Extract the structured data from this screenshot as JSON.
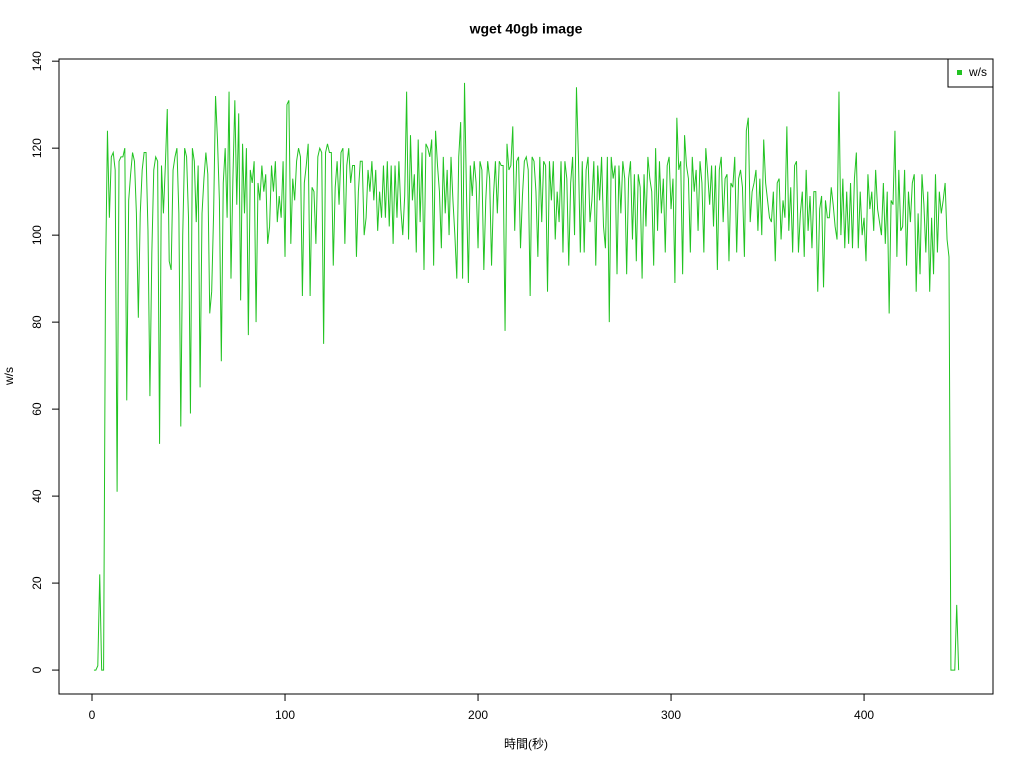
{
  "chart_data": {
    "type": "line",
    "title": "wget 40gb image",
    "x_label": "時間(秒)",
    "y_label": "w/s",
    "xlim": [
      -17.1,
      466.8
    ],
    "ylim": [
      -5.5,
      140.5
    ],
    "xticks": [
      0,
      100,
      200,
      300,
      400
    ],
    "yticks": [
      0,
      20,
      40,
      60,
      80,
      100,
      120,
      140
    ],
    "legend": "top-right",
    "x": [
      1,
      2,
      3,
      4,
      5,
      6,
      7,
      8,
      9,
      10,
      11,
      12,
      13,
      14,
      15,
      16,
      17,
      18,
      19,
      20,
      21,
      22,
      23,
      24,
      25,
      26,
      27,
      28,
      29,
      30,
      31,
      32,
      33,
      34,
      35,
      36,
      37,
      38,
      39,
      40,
      41,
      42,
      43,
      44,
      45,
      46,
      47,
      48,
      49,
      50,
      51,
      52,
      53,
      54,
      55,
      56,
      57,
      58,
      59,
      60,
      61,
      62,
      63,
      64,
      65,
      66,
      67,
      68,
      69,
      70,
      71,
      72,
      73,
      74,
      75,
      76,
      77,
      78,
      79,
      80,
      81,
      82,
      83,
      84,
      85,
      86,
      87,
      88,
      89,
      90,
      91,
      92,
      93,
      94,
      95,
      96,
      97,
      98,
      99,
      100,
      101,
      102,
      103,
      104,
      105,
      106,
      107,
      108,
      109,
      110,
      111,
      112,
      113,
      114,
      115,
      116,
      117,
      118,
      119,
      120,
      121,
      122,
      123,
      124,
      125,
      126,
      127,
      128,
      129,
      130,
      131,
      132,
      133,
      134,
      135,
      136,
      137,
      138,
      139,
      140,
      141,
      142,
      143,
      144,
      145,
      146,
      147,
      148,
      149,
      150,
      151,
      152,
      153,
      154,
      155,
      156,
      157,
      158,
      159,
      160,
      161,
      162,
      163,
      164,
      165,
      166,
      167,
      168,
      169,
      170,
      171,
      172,
      173,
      174,
      175,
      176,
      177,
      178,
      179,
      180,
      181,
      182,
      183,
      184,
      185,
      186,
      187,
      188,
      189,
      190,
      191,
      192,
      193,
      194,
      195,
      196,
      197,
      198,
      199,
      200,
      201,
      202,
      203,
      204,
      205,
      206,
      207,
      208,
      209,
      210,
      211,
      212,
      213,
      214,
      215,
      216,
      217,
      218,
      219,
      220,
      221,
      222,
      223,
      224,
      225,
      226,
      227,
      228,
      229,
      230,
      231,
      232,
      233,
      234,
      235,
      236,
      237,
      238,
      239,
      240,
      241,
      242,
      243,
      244,
      245,
      246,
      247,
      248,
      249,
      250,
      251,
      252,
      253,
      254,
      255,
      256,
      257,
      258,
      259,
      260,
      261,
      262,
      263,
      264,
      265,
      266,
      267,
      268,
      269,
      270,
      271,
      272,
      273,
      274,
      275,
      276,
      277,
      278,
      279,
      280,
      281,
      282,
      283,
      284,
      285,
      286,
      287,
      288,
      289,
      290,
      291,
      292,
      293,
      294,
      295,
      296,
      297,
      298,
      299,
      300,
      301,
      302,
      303,
      304,
      305,
      306,
      307,
      308,
      309,
      310,
      311,
      312,
      313,
      314,
      315,
      316,
      317,
      318,
      319,
      320,
      321,
      322,
      323,
      324,
      325,
      326,
      327,
      328,
      329,
      330,
      331,
      332,
      333,
      334,
      335,
      336,
      337,
      338,
      339,
      340,
      341,
      342,
      343,
      344,
      345,
      346,
      347,
      348,
      349,
      350,
      351,
      352,
      353,
      354,
      355,
      356,
      357,
      358,
      359,
      360,
      361,
      362,
      363,
      364,
      365,
      366,
      367,
      368,
      369,
      370,
      371,
      372,
      373,
      374,
      375,
      376,
      377,
      378,
      379,
      380,
      381,
      382,
      383,
      384,
      385,
      386,
      387,
      388,
      389,
      390,
      391,
      392,
      393,
      394,
      395,
      396,
      397,
      398,
      399,
      400,
      401,
      402,
      403,
      404,
      405,
      406,
      407,
      408,
      409,
      410,
      411,
      412,
      413,
      414,
      415,
      416,
      417,
      418,
      419,
      420,
      421,
      422,
      423,
      424,
      425,
      426,
      427,
      428,
      429,
      430,
      431,
      432,
      433,
      434,
      435,
      436,
      437,
      438,
      439,
      440,
      441,
      442,
      443,
      444,
      445,
      446,
      447,
      448,
      449
    ],
    "series": [
      {
        "name": "w/s",
        "color": "#22c322",
        "values": [
          0,
          0,
          1,
          22,
          0,
          0,
          90,
          124,
          104,
          118,
          119,
          115,
          41,
          117,
          118,
          118,
          120,
          62,
          108,
          114,
          119,
          117,
          105,
          81,
          105,
          115,
          119,
          119,
          101,
          63,
          96,
          115,
          118,
          117,
          52,
          116,
          105,
          116,
          129,
          94,
          92,
          115,
          118,
          120,
          105,
          56,
          100,
          120,
          118,
          104,
          59,
          120,
          117,
          103,
          116,
          65,
          105,
          113,
          119,
          114,
          82,
          87,
          105,
          132,
          122,
          108,
          71,
          112,
          120,
          104,
          133,
          90,
          113,
          131,
          107,
          128,
          85,
          121,
          105,
          120,
          77,
          115,
          112,
          117,
          80,
          112,
          108,
          116,
          110,
          114,
          98,
          102,
          116,
          110,
          117,
          103,
          109,
          104,
          117,
          95,
          130,
          131,
          98,
          113,
          108,
          117,
          120,
          118,
          86,
          112,
          116,
          121,
          86,
          111,
          110,
          98,
          118,
          120,
          119,
          75,
          119,
          121,
          119,
          119,
          93,
          111,
          117,
          107,
          119,
          120,
          98,
          116,
          120,
          112,
          116,
          116,
          95,
          110,
          117,
          117,
          100,
          104,
          115,
          110,
          117,
          108,
          115,
          101,
          110,
          104,
          116,
          104,
          117,
          102,
          116,
          98,
          116,
          104,
          117,
          106,
          100,
          109,
          133,
          99,
          123,
          108,
          114,
          96,
          122,
          103,
          119,
          92,
          121,
          120,
          118,
          122,
          93,
          124,
          116,
          110,
          97,
          118,
          105,
          115,
          100,
          118,
          108,
          100,
          90,
          118,
          126,
          90,
          135,
          110,
          89,
          116,
          109,
          117,
          112,
          97,
          117,
          115,
          92,
          108,
          117,
          113,
          93,
          109,
          117,
          105,
          117,
          116,
          116,
          78,
          121,
          115,
          116,
          125,
          101,
          117,
          118,
          97,
          109,
          117,
          118,
          115,
          86,
          118,
          117,
          110,
          95,
          118,
          103,
          117,
          116,
          87,
          117,
          108,
          117,
          99,
          110,
          103,
          117,
          96,
          117,
          113,
          93,
          112,
          118,
          100,
          134,
          118,
          96,
          117,
          96,
          115,
          118,
          103,
          108,
          117,
          93,
          116,
          108,
          118,
          102,
          97,
          118,
          80,
          118,
          113,
          116,
          91,
          116,
          105,
          117,
          113,
          91,
          113,
          117,
          99,
          114,
          94,
          114,
          111,
          90,
          114,
          102,
          118,
          113,
          110,
          93,
          120,
          101,
          117,
          105,
          113,
          96,
          116,
          118,
          106,
          113,
          89,
          127,
          115,
          117,
          91,
          123,
          116,
          113,
          96,
          118,
          110,
          115,
          101,
          117,
          112,
          96,
          120,
          114,
          107,
          116,
          102,
          116,
          92,
          115,
          118,
          103,
          113,
          114,
          94,
          112,
          111,
          118,
          96,
          113,
          115,
          111,
          95,
          124,
          127,
          103,
          110,
          112,
          115,
          101,
          113,
          100,
          122,
          112,
          108,
          104,
          103,
          110,
          94,
          112,
          113,
          99,
          108,
          104,
          125,
          101,
          111,
          96,
          116,
          117,
          96,
          105,
          110,
          95,
          115,
          101,
          109,
          97,
          110,
          110,
          87,
          106,
          109,
          88,
          108,
          104,
          104,
          111,
          107,
          102,
          99,
          133,
          100,
          113,
          97,
          110,
          98,
          112,
          97,
          113,
          119,
          97,
          110,
          100,
          104,
          94,
          114,
          106,
          110,
          101,
          115,
          106,
          103,
          100,
          112,
          98,
          110,
          82,
          108,
          107,
          124,
          95,
          115,
          101,
          102,
          115,
          93,
          110,
          103,
          112,
          114,
          87,
          105,
          91,
          114,
          107,
          96,
          110,
          87,
          104,
          91,
          114,
          96,
          110,
          105,
          108,
          112,
          99,
          95,
          0,
          0,
          0,
          15,
          0
        ]
      }
    ]
  }
}
